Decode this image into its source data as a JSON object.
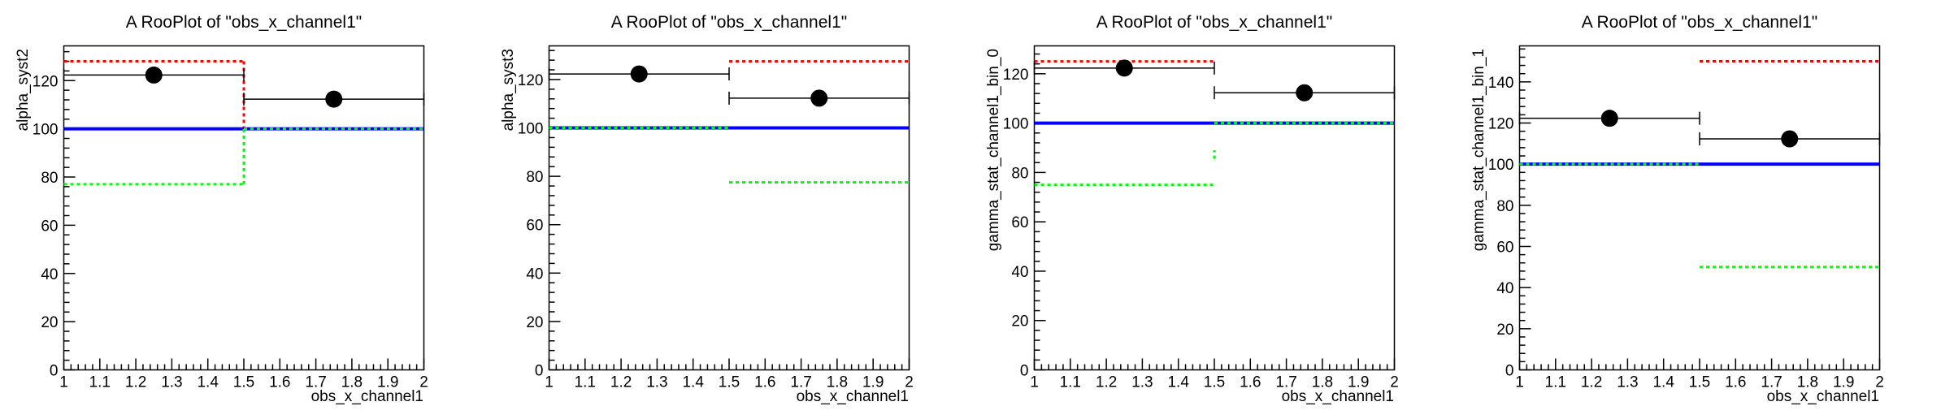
{
  "page": {
    "background": "#ffffff"
  },
  "colors": {
    "plus_sigma": "#ff0000",
    "nominal": "#0000ff",
    "minus_sigma": "#00ff00",
    "data": "#000000"
  },
  "chart_data": [
    {
      "type": "line",
      "title": "A RooPlot of \"obs_x_channel1\"",
      "xlabel": "obs_x_channel1",
      "ylabel": "alpha_syst2",
      "xlim": [
        1,
        2
      ],
      "ylim": [
        0,
        134.4
      ],
      "grid": false,
      "legend": false,
      "x_tick_values": [
        1,
        1.1,
        1.2,
        1.3,
        1.4,
        1.5,
        1.6,
        1.7,
        1.8,
        1.9,
        2
      ],
      "x_tick_labels": [
        "1",
        "1.1",
        "1.2",
        "1.3",
        "1.4",
        "1.5",
        "1.6",
        "1.7",
        "1.8",
        "1.9",
        "2"
      ],
      "x_minor_step": 0.02,
      "y_tick_values": [
        0,
        20,
        40,
        60,
        80,
        100,
        120
      ],
      "y_tick_labels": [
        "0",
        "20",
        "40",
        "60",
        "80",
        "100",
        "120"
      ],
      "y_major_step": 20,
      "y_minor_step": 4,
      "curves": [
        {
          "name": "plus-1sigma",
          "color": "#ff0000",
          "style": "dotted",
          "width": 3,
          "segments": [
            [
              1,
              128,
              1.5,
              128
            ],
            [
              1.5,
              128,
              1.5,
              100
            ],
            [
              1.5,
              100,
              2,
              100
            ]
          ]
        },
        {
          "name": "nominal",
          "color": "#0000ff",
          "style": "solid",
          "width": 4,
          "segments": [
            [
              1,
              100,
              2,
              100
            ]
          ]
        },
        {
          "name": "minus-1sigma",
          "color": "#00ff00",
          "style": "dotted",
          "width": 3,
          "segments": [
            [
              1,
              77,
              1.5,
              77
            ],
            [
              1.5,
              77,
              1.5,
              100
            ],
            [
              1.5,
              100,
              2,
              100
            ]
          ]
        }
      ],
      "data_points": [
        {
          "x": 1.25,
          "y": 122.3,
          "xlo": 1,
          "xhi": 1.5
        },
        {
          "x": 1.75,
          "y": 112.3,
          "xlo": 1.5,
          "xhi": 2
        }
      ]
    },
    {
      "type": "line",
      "title": "A RooPlot of \"obs_x_channel1\"",
      "xlabel": "obs_x_channel1",
      "ylabel": "alpha_syst3",
      "xlim": [
        1,
        2
      ],
      "ylim": [
        0,
        133.9
      ],
      "grid": false,
      "legend": false,
      "x_tick_values": [
        1,
        1.1,
        1.2,
        1.3,
        1.4,
        1.5,
        1.6,
        1.7,
        1.8,
        1.9,
        2
      ],
      "x_tick_labels": [
        "1",
        "1.1",
        "1.2",
        "1.3",
        "1.4",
        "1.5",
        "1.6",
        "1.7",
        "1.8",
        "1.9",
        "2"
      ],
      "x_minor_step": 0.02,
      "y_tick_values": [
        0,
        20,
        40,
        60,
        80,
        100,
        120
      ],
      "y_tick_labels": [
        "0",
        "20",
        "40",
        "60",
        "80",
        "100",
        "120"
      ],
      "y_major_step": 20,
      "y_minor_step": 4,
      "curves": [
        {
          "name": "plus-1sigma",
          "color": "#ff0000",
          "style": "dotted",
          "width": 3,
          "segments": [
            [
              1,
              100,
              1.5,
              100
            ],
            [
              1.5,
              127.5,
              2,
              127.5
            ]
          ]
        },
        {
          "name": "nominal",
          "color": "#0000ff",
          "style": "solid",
          "width": 4,
          "segments": [
            [
              1,
              100,
              2,
              100
            ]
          ]
        },
        {
          "name": "minus-1sigma",
          "color": "#00ff00",
          "style": "dotted",
          "width": 3,
          "segments": [
            [
              1,
              100,
              1.5,
              100
            ],
            [
              1.5,
              77.5,
              2,
              77.5
            ]
          ]
        }
      ],
      "data_points": [
        {
          "x": 1.25,
          "y": 122.3,
          "xlo": 1,
          "xhi": 1.5
        },
        {
          "x": 1.75,
          "y": 112.3,
          "xlo": 1.5,
          "xhi": 2
        }
      ]
    },
    {
      "type": "line",
      "title": "A RooPlot of \"obs_x_channel1\"",
      "xlabel": "obs_x_channel1",
      "ylabel": "gamma_stat_channel1_bin_0",
      "xlim": [
        1,
        2
      ],
      "ylim": [
        0,
        131.3
      ],
      "grid": false,
      "legend": false,
      "x_tick_values": [
        1,
        1.1,
        1.2,
        1.3,
        1.4,
        1.5,
        1.6,
        1.7,
        1.8,
        1.9,
        2
      ],
      "x_tick_labels": [
        "1",
        "1.1",
        "1.2",
        "1.3",
        "1.4",
        "1.5",
        "1.6",
        "1.7",
        "1.8",
        "1.9",
        "2"
      ],
      "x_minor_step": 0.02,
      "y_tick_values": [
        0,
        20,
        40,
        60,
        80,
        100,
        120
      ],
      "y_tick_labels": [
        "0",
        "20",
        "40",
        "60",
        "80",
        "100",
        "120"
      ],
      "y_major_step": 20,
      "y_minor_step": 4,
      "curves": [
        {
          "name": "plus-1sigma",
          "color": "#ff0000",
          "style": "dotted",
          "width": 3,
          "segments": [
            [
              1,
              125,
              1.5,
              125
            ],
            [
              1.5,
              100,
              2,
              100
            ]
          ]
        },
        {
          "name": "nominal",
          "color": "#0000ff",
          "style": "solid",
          "width": 4,
          "segments": [
            [
              1,
              100,
              2,
              100
            ]
          ]
        },
        {
          "name": "minus-1sigma",
          "color": "#00ff00",
          "style": "dotted",
          "width": 3,
          "segments": [
            [
              1,
              75,
              1.5,
              75
            ],
            [
              1.5,
              85.5,
              1.5,
              89
            ],
            [
              1.5,
              100,
              2,
              100
            ]
          ]
        }
      ],
      "data_points": [
        {
          "x": 1.25,
          "y": 122.3,
          "xlo": 1,
          "xhi": 1.5
        },
        {
          "x": 1.75,
          "y": 112.3,
          "xlo": 1.5,
          "xhi": 2
        }
      ]
    },
    {
      "type": "line",
      "title": "A RooPlot of \"obs_x_channel1\"",
      "xlabel": "obs_x_channel1",
      "ylabel": "gamma_stat_channel1_bin_1",
      "xlim": [
        1,
        2
      ],
      "ylim": [
        0,
        157.5
      ],
      "grid": false,
      "legend": false,
      "x_tick_values": [
        1,
        1.1,
        1.2,
        1.3,
        1.4,
        1.5,
        1.6,
        1.7,
        1.8,
        1.9,
        2
      ],
      "x_tick_labels": [
        "1",
        "1.1",
        "1.2",
        "1.3",
        "1.4",
        "1.5",
        "1.6",
        "1.7",
        "1.8",
        "1.9",
        "2"
      ],
      "x_minor_step": 0.02,
      "y_tick_values": [
        0,
        20,
        40,
        60,
        80,
        100,
        120,
        140
      ],
      "y_tick_labels": [
        "0",
        "20",
        "40",
        "60",
        "80",
        "100",
        "120",
        "140"
      ],
      "y_major_step": 20,
      "y_minor_step": 4,
      "curves": [
        {
          "name": "plus-1sigma",
          "color": "#ff0000",
          "style": "dotted",
          "width": 3,
          "segments": [
            [
              1,
              100,
              1.5,
              100
            ],
            [
              1.5,
              150,
              2,
              150
            ]
          ]
        },
        {
          "name": "nominal",
          "color": "#0000ff",
          "style": "solid",
          "width": 4,
          "segments": [
            [
              1,
              100,
              2,
              100
            ]
          ]
        },
        {
          "name": "minus-1sigma",
          "color": "#00ff00",
          "style": "dotted",
          "width": 3,
          "segments": [
            [
              1,
              100,
              1.5,
              100
            ],
            [
              1.5,
              50,
              2,
              50
            ]
          ]
        }
      ],
      "data_points": [
        {
          "x": 1.25,
          "y": 122.3,
          "xlo": 1,
          "xhi": 1.5
        },
        {
          "x": 1.75,
          "y": 112.3,
          "xlo": 1.5,
          "xhi": 2
        }
      ]
    }
  ]
}
